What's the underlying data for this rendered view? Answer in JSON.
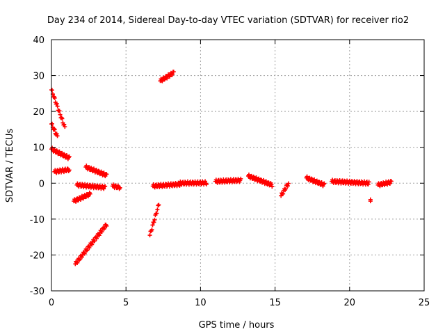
{
  "chart_data": {
    "type": "scatter",
    "title": "Day 234 of 2014, Sidereal Day-to-day VTEC variation (SDTVAR) for receiver rio2",
    "xlabel": "GPS time / hours",
    "ylabel": "SDTVAR / TECUs",
    "xlim": [
      0,
      25
    ],
    "ylim": [
      -30,
      40
    ],
    "xticks": [
      0,
      5,
      10,
      15,
      20,
      25
    ],
    "yticks": [
      -30,
      -20,
      -10,
      0,
      10,
      20,
      30,
      40
    ],
    "grid": true,
    "marker": "+",
    "color": "#ff0000",
    "segments": [
      {
        "x0": 0.0,
        "y0": 26.0,
        "x1": 0.9,
        "y1": 15.5
      },
      {
        "x0": 0.0,
        "y0": 16.5,
        "x1": 0.4,
        "y1": 13.0
      },
      {
        "x0": 0.0,
        "y0": 9.5,
        "x1": 1.2,
        "y1": 7.0
      },
      {
        "x0": 0.2,
        "y0": 3.2,
        "x1": 1.2,
        "y1": 3.8
      },
      {
        "x0": 1.6,
        "y0": -22.5,
        "x1": 3.7,
        "y1": -11.5
      },
      {
        "x0": 1.5,
        "y0": -5.0,
        "x1": 2.6,
        "y1": -3.0
      },
      {
        "x0": 1.7,
        "y0": -0.5,
        "x1": 3.6,
        "y1": -1.2
      },
      {
        "x0": 2.3,
        "y0": 4.5,
        "x1": 3.7,
        "y1": 2.2
      },
      {
        "x0": 4.1,
        "y0": -0.8,
        "x1": 4.6,
        "y1": -1.2
      },
      {
        "x0": 6.6,
        "y0": -14.5,
        "x1": 7.2,
        "y1": -6.0
      },
      {
        "x0": 6.8,
        "y0": -0.8,
        "x1": 8.6,
        "y1": -0.3
      },
      {
        "x0": 7.3,
        "y0": 28.5,
        "x1": 8.2,
        "y1": 30.8
      },
      {
        "x0": 8.6,
        "y0": 0.0,
        "x1": 10.4,
        "y1": 0.1
      },
      {
        "x0": 11.0,
        "y0": 0.5,
        "x1": 12.7,
        "y1": 0.8
      },
      {
        "x0": 13.2,
        "y0": 2.0,
        "x1": 14.8,
        "y1": -0.5
      },
      {
        "x0": 15.4,
        "y0": -3.5,
        "x1": 15.9,
        "y1": 0.0
      },
      {
        "x0": 17.1,
        "y0": 1.5,
        "x1": 18.3,
        "y1": -0.5
      },
      {
        "x0": 18.8,
        "y0": 0.5,
        "x1": 21.3,
        "y1": 0.0
      },
      {
        "x0": 21.4,
        "y0": -5.0,
        "x1": 21.4,
        "y1": -5.0
      },
      {
        "x0": 21.9,
        "y0": -0.5,
        "x1": 22.8,
        "y1": 0.3
      }
    ]
  }
}
